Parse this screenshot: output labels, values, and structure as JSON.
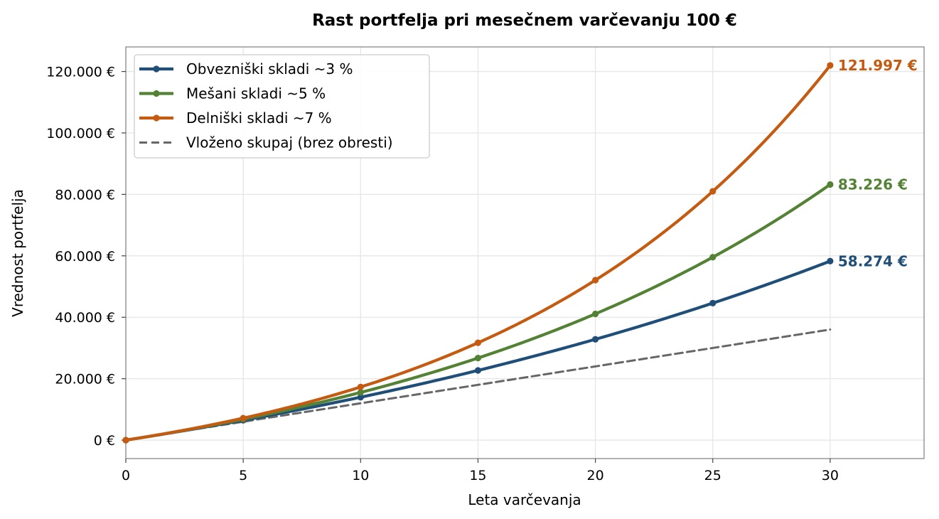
{
  "chart_data": {
    "type": "line",
    "title": "Rast portfelja pri mesečnem varčevanju 100 €",
    "xlabel": "Leta varčevanja",
    "ylabel": "Vrednost portfelja",
    "xlim": [
      0,
      34
    ],
    "ylim": [
      -6000,
      128000
    ],
    "xticks": [
      0,
      5,
      10,
      15,
      20,
      25,
      30
    ],
    "xtick_labels": [
      "0",
      "5",
      "10",
      "15",
      "20",
      "25",
      "30"
    ],
    "yticks": [
      0,
      20000,
      40000,
      60000,
      80000,
      100000,
      120000
    ],
    "ytick_labels": [
      "0 €",
      "20.000 €",
      "40.000 €",
      "60.000 €",
      "80.000 €",
      "100.000 €",
      "120.000 €"
    ],
    "grid": true,
    "legend_position": "top-left",
    "marker_x": [
      0,
      5,
      10,
      15,
      20,
      25,
      30
    ],
    "series": [
      {
        "name": "Obvezniški skladi ~3 %",
        "key": "bonds",
        "color": "#1f4e79",
        "style": "solid",
        "rate": 0.03,
        "values": [
          0,
          6465,
          13974,
          22700,
          32830,
          44600,
          58274
        ],
        "end_label": "58.274 €"
      },
      {
        "name": "Mešani skladi ~5 %",
        "key": "mixed",
        "color": "#548235",
        "style": "solid",
        "rate": 0.05,
        "values": [
          0,
          6801,
          15528,
          26729,
          41103,
          59550,
          83226
        ],
        "end_label": "83.226 €"
      },
      {
        "name": "Delniški skladi ~7 %",
        "key": "equity",
        "color": "#c55a11",
        "style": "solid",
        "rate": 0.07,
        "values": [
          0,
          7159,
          17308,
          31696,
          52093,
          81007,
          121997
        ],
        "end_label": "121.997 €"
      },
      {
        "name": "Vloženo skupaj (brez obresti)",
        "key": "invested",
        "color": "#666666",
        "style": "dashed",
        "values": [
          0,
          6000,
          12000,
          18000,
          24000,
          30000,
          36000
        ]
      }
    ]
  }
}
